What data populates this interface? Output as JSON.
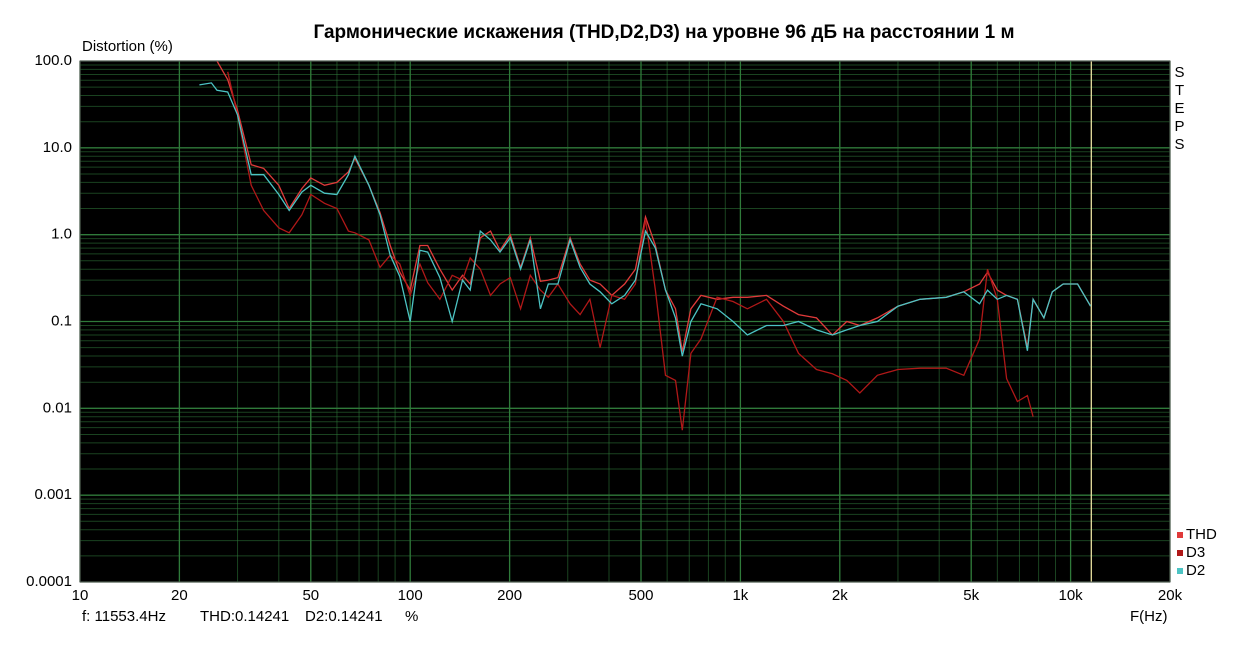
{
  "chart_data": {
    "type": "line",
    "title": "Гармонические искажения (THD,D2,D3) на уровне 96 дБ на расстоянии 1 м",
    "y_label": "Distortion (%)",
    "x_label": "F(Hz)",
    "side_label": "STEPS",
    "log_x": true,
    "log_y": true,
    "grid": true,
    "minor_grid": true,
    "background": "#000000",
    "grid_color": "#2f7a3a",
    "legend": "lower right",
    "xlim": [
      10,
      20000
    ],
    "ylim": [
      0.0001,
      100
    ],
    "xticks": [
      10,
      20,
      50,
      100,
      200,
      500,
      {
        "value": 1000,
        "label": "1k"
      },
      {
        "value": 2000,
        "label": "2k"
      },
      {
        "value": 5000,
        "label": "5k"
      },
      {
        "value": 10000,
        "label": "10k"
      },
      {
        "value": 20000,
        "label": "20k"
      }
    ],
    "yticks": [
      {
        "value": 100,
        "label": "100.0"
      },
      {
        "value": 10,
        "label": "10.0"
      },
      {
        "value": 1,
        "label": "1.0"
      },
      0.1,
      0.01,
      0.001,
      0.0001
    ],
    "cursor": {
      "x": 11553.4,
      "color": "#e8e0a0"
    },
    "status": [
      "f: 11553.4Hz",
      "THD:0.14241",
      "D2:0.14241",
      "%"
    ],
    "x": [
      23,
      25,
      26,
      28,
      30,
      33,
      36,
      40,
      43,
      47,
      50,
      55,
      60,
      65,
      68,
      75,
      81,
      87,
      93,
      100,
      107,
      113,
      123,
      134,
      144,
      152,
      163,
      175,
      187,
      201,
      216,
      231,
      248,
      262,
      280,
      305,
      327,
      350,
      376,
      408,
      446,
      481,
      516,
      553,
      593,
      636,
      667,
      708,
      760,
      850,
      950,
      1050,
      1200,
      1350,
      1500,
      1700,
      1900,
      2100,
      2300,
      2600,
      3000,
      3500,
      4200,
      4750,
      5300,
      5600,
      6000,
      6400,
      6900,
      7400,
      7700,
      8300,
      8800,
      9500,
      10500,
      11500
    ],
    "series": [
      {
        "name": "THD",
        "color": "#e03a3a",
        "values": [
          null,
          null,
          100,
          61,
          27,
          6.4,
          5.8,
          3.7,
          2.0,
          3.4,
          4.5,
          3.7,
          4.0,
          5.3,
          7.6,
          3.7,
          1.8,
          0.75,
          0.37,
          0.23,
          0.75,
          0.75,
          0.4,
          0.23,
          0.34,
          0.27,
          0.92,
          1.1,
          0.66,
          1.0,
          0.42,
          0.92,
          0.29,
          0.3,
          0.32,
          0.92,
          0.46,
          0.3,
          0.27,
          0.2,
          0.27,
          0.4,
          1.6,
          0.75,
          0.23,
          0.14,
          0.045,
          0.14,
          0.2,
          0.18,
          0.19,
          0.19,
          0.2,
          0.15,
          0.12,
          0.11,
          0.07,
          0.1,
          0.09,
          0.11,
          0.15,
          0.18,
          0.19,
          0.22,
          0.27,
          0.37,
          0.23,
          0.2,
          0.18,
          0.05,
          0.18,
          0.11,
          0.22,
          0.27,
          0.27,
          0.15
        ]
      },
      {
        "name": "D3",
        "color": "#b01818",
        "values": [
          null,
          null,
          null,
          75,
          24,
          3.7,
          1.9,
          1.2,
          1.05,
          1.7,
          2.9,
          2.3,
          2.0,
          1.1,
          1.05,
          0.87,
          0.42,
          0.58,
          0.46,
          0.2,
          0.46,
          0.28,
          0.18,
          0.34,
          0.3,
          0.54,
          0.4,
          0.2,
          0.27,
          0.32,
          0.14,
          0.34,
          0.23,
          0.19,
          0.27,
          0.16,
          0.12,
          0.18,
          0.05,
          0.2,
          0.18,
          0.27,
          1.5,
          0.23,
          0.024,
          0.021,
          0.0056,
          0.043,
          0.063,
          0.19,
          0.17,
          0.14,
          0.18,
          0.1,
          0.043,
          0.028,
          0.025,
          0.021,
          0.015,
          0.024,
          0.028,
          0.029,
          0.029,
          0.024,
          0.063,
          0.4,
          0.18,
          0.022,
          0.012,
          0.014,
          0.008,
          null,
          null,
          null,
          null,
          null
        ]
      },
      {
        "name": "D2",
        "color": "#4cc4c4",
        "values": [
          53,
          56,
          46,
          44,
          24,
          4.9,
          4.9,
          2.9,
          1.9,
          3.1,
          3.7,
          3.0,
          2.9,
          4.9,
          8.0,
          3.7,
          1.7,
          0.58,
          0.33,
          0.1,
          0.66,
          0.63,
          0.32,
          0.1,
          0.3,
          0.23,
          1.1,
          0.87,
          0.63,
          0.92,
          0.4,
          0.87,
          0.14,
          0.27,
          0.27,
          0.87,
          0.42,
          0.27,
          0.22,
          0.16,
          0.2,
          0.3,
          1.1,
          0.7,
          0.23,
          0.11,
          0.04,
          0.1,
          0.16,
          0.14,
          0.1,
          0.07,
          0.09,
          0.09,
          0.1,
          0.08,
          0.07,
          0.08,
          0.09,
          0.1,
          0.15,
          0.18,
          0.19,
          0.22,
          0.16,
          0.23,
          0.18,
          0.2,
          0.18,
          0.046,
          0.18,
          0.11,
          0.22,
          0.27,
          0.27,
          0.15
        ]
      }
    ]
  }
}
